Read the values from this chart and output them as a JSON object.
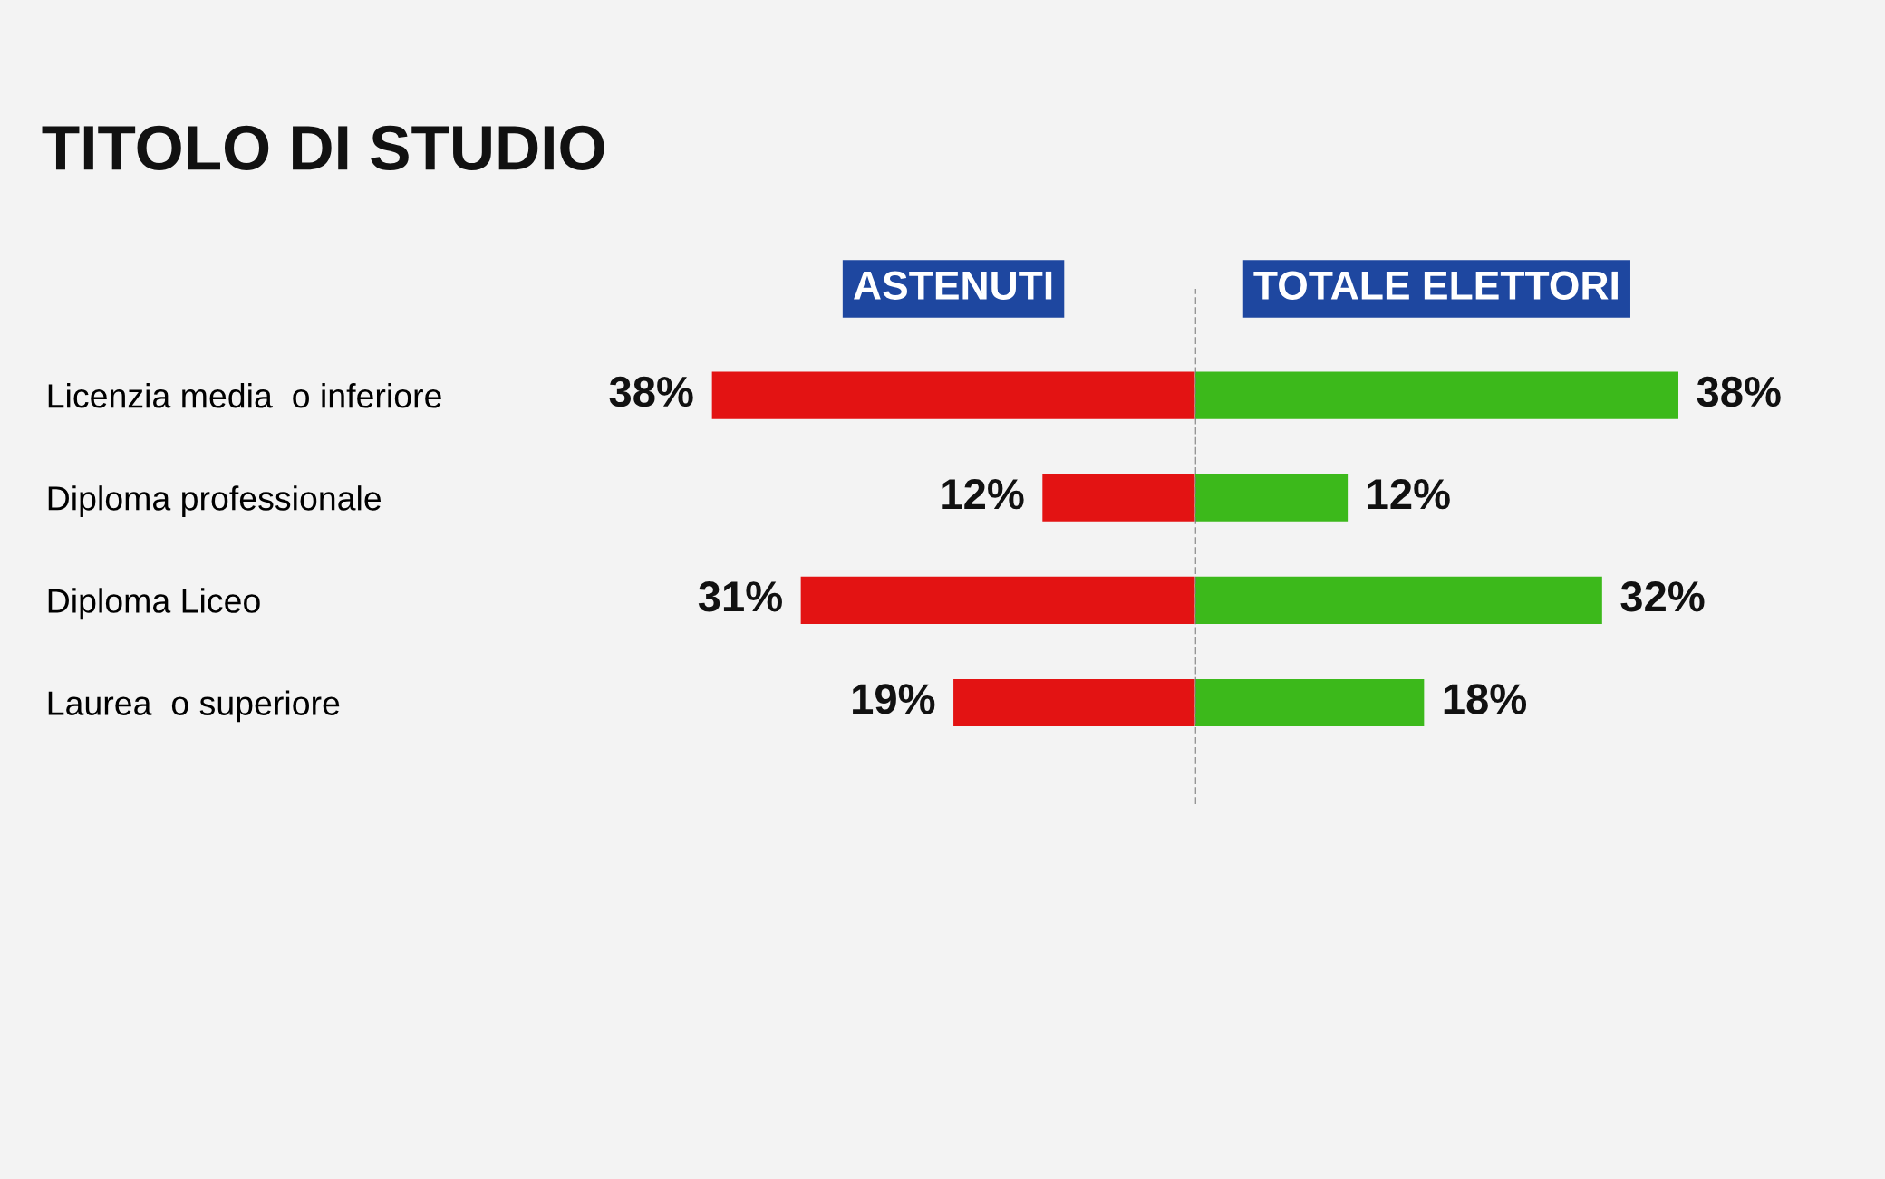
{
  "chart_data": [
    {
      "type": "bar",
      "orientation": "horizontal",
      "title": "TITOLO DI STUDIO",
      "subtitle": "ASTENUTI",
      "tick_labels": "y",
      "categories": [
        "Licenzia media  o inferiore",
        "Diploma professionale",
        "Diploma Liceo",
        "Laurea  o superiore"
      ],
      "series": [
        {
          "color": "#e31313",
          "values": [
            38,
            12,
            31,
            19
          ],
          "value_labels": [
            "38%",
            "12%",
            "31%",
            "19%"
          ]
        }
      ],
      "xlim": [
        38,
        0
      ],
      "legend": false,
      "grid": false
    },
    {
      "type": "bar",
      "orientation": "horizontal",
      "subtitle": "TOTALE ELETTORI",
      "tick_labels": false,
      "categories": [
        null,
        null,
        null,
        null
      ],
      "series": [
        {
          "color": "#3cb91b",
          "values": [
            38,
            12,
            32,
            18
          ],
          "value_labels": [
            "38%",
            "12%",
            "32%",
            "18%"
          ]
        }
      ],
      "xlim": [
        0,
        38
      ],
      "ref_lines": [
        {
          "axis": "x",
          "value": 0,
          "color": "#777777",
          "line_style": "dashed"
        }
      ],
      "legend": false,
      "grid": false
    }
  ]
}
